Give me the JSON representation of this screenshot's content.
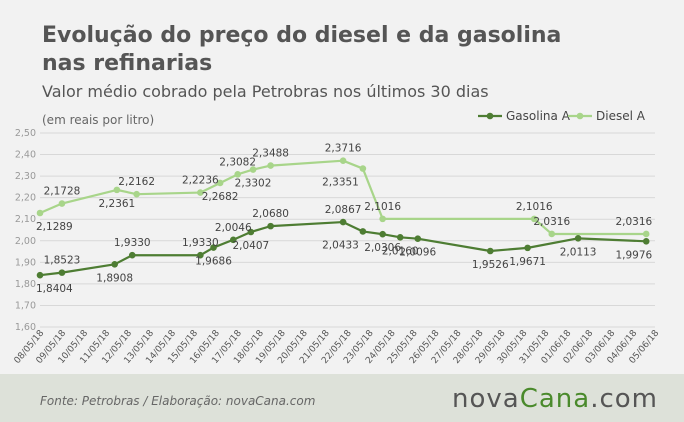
{
  "title": "Evolução do preço do diesel e da gasolina nas refinarias",
  "subtitle": "Valor médio cobrado pela Petrobras nos últimos 30 dias",
  "units": "(em reais por litro)",
  "footer": {
    "source": "Fonte:  Petrobras  / Elaboração:  novaCana.com",
    "brand_part1": "nova",
    "brand_part2": "Cana",
    "brand_part3": ".com"
  },
  "colors": {
    "gasolina": "#4e7d33",
    "diesel": "#a8d58a",
    "grid": "#d8d8d8"
  },
  "chart_data": {
    "type": "line",
    "categories": [
      "08/05/18",
      "09/05/18",
      "10/05/18",
      "11/05/18",
      "12/05/18",
      "13/05/18",
      "14/05/18",
      "15/05/18",
      "16/05/18",
      "17/05/18",
      "18/05/18",
      "19/05/18",
      "20/05/18",
      "21/05/18",
      "22/05/18",
      "23/05/18",
      "24/05/18",
      "25/05/18",
      "26/05/18",
      "27/05/18",
      "28/05/18",
      "29/05/18",
      "30/05/18",
      "31/05/18",
      "01/06/18",
      "02/06/18",
      "03/06/18",
      "04/06/18",
      "05/06/18"
    ],
    "yticks": [
      "1,60",
      "1,70",
      "1,80",
      "1,90",
      "2,00",
      "2,10",
      "2,20",
      "2,30",
      "2,40",
      "2,50"
    ],
    "ylim": [
      1.6,
      2.5
    ],
    "legend_position": "top-right",
    "series": [
      {
        "name": "Gasolina A",
        "color": "#4e7d33",
        "points": [
          {
            "x": 0,
            "y": 1.8404,
            "label": "1,8404",
            "lp": "below"
          },
          {
            "x": 1,
            "y": 1.8523,
            "label": "1,8523",
            "lp": "above"
          },
          {
            "x": 3.4,
            "y": 1.8908,
            "label": "1,8908",
            "lp": "below"
          },
          {
            "x": 4.2,
            "y": 1.933,
            "label": "1,9330",
            "lp": "above"
          },
          {
            "x": 7.3,
            "y": 1.933,
            "label": "1,9330",
            "lp": "above"
          },
          {
            "x": 7.9,
            "y": 1.9686,
            "label": "1,9686",
            "lp": "below"
          },
          {
            "x": 8.8,
            "y": 2.0046,
            "label": "2,0046",
            "lp": "above"
          },
          {
            "x": 9.6,
            "y": 2.0407,
            "label": "2,0407",
            "lp": "below"
          },
          {
            "x": 10.5,
            "y": 2.068,
            "label": "2,0680",
            "lp": "above"
          },
          {
            "x": 13.8,
            "y": 2.0867,
            "label": "2,0867",
            "lp": "above"
          },
          {
            "x": 14.7,
            "y": 2.0433,
            "label": "2,0433",
            "lp": "belowleft"
          },
          {
            "x": 15.6,
            "y": 2.0306,
            "label": "2,0306",
            "lp": "below"
          },
          {
            "x": 16.4,
            "y": 2.016,
            "label": "2,0160",
            "lp": "below"
          },
          {
            "x": 17.2,
            "y": 2.0096,
            "label": "2,0096",
            "lp": "below"
          },
          {
            "x": 20.5,
            "y": 1.9526,
            "label": "1,9526",
            "lp": "below"
          },
          {
            "x": 22.2,
            "y": 1.9671,
            "label": "1,9671",
            "lp": "below"
          },
          {
            "x": 24.5,
            "y": 2.0113,
            "label": "2,0113",
            "lp": "below"
          },
          {
            "x": 27.6,
            "y": 1.9976,
            "label": "1,9976",
            "lp": "below"
          }
        ]
      },
      {
        "name": "Diesel A",
        "color": "#a8d58a",
        "points": [
          {
            "x": 0,
            "y": 2.1289,
            "label": "2,1289",
            "lp": "below"
          },
          {
            "x": 1,
            "y": 2.1728,
            "label": "2,1728",
            "lp": "above"
          },
          {
            "x": 3.5,
            "y": 2.2361,
            "label": "2,2361",
            "lp": "below"
          },
          {
            "x": 4.4,
            "y": 2.2162,
            "label": "2,2162",
            "lp": "above"
          },
          {
            "x": 7.3,
            "y": 2.2236,
            "label": "2,2236",
            "lp": "above"
          },
          {
            "x": 8.2,
            "y": 2.2682,
            "label": "2,2682",
            "lp": "below"
          },
          {
            "x": 9,
            "y": 2.3082,
            "label": "2,3082",
            "lp": "above"
          },
          {
            "x": 9.7,
            "y": 2.3302,
            "label": "2,3302",
            "lp": "below"
          },
          {
            "x": 10.5,
            "y": 2.3488,
            "label": "2,3488",
            "lp": "above"
          },
          {
            "x": 13.8,
            "y": 2.3716,
            "label": "2,3716",
            "lp": "above"
          },
          {
            "x": 14.7,
            "y": 2.3351,
            "label": "2,3351",
            "lp": "belowleft"
          },
          {
            "x": 15.6,
            "y": 2.1016,
            "label": "2,1016",
            "lp": "above"
          },
          {
            "x": 22.5,
            "y": 2.1016,
            "label": "2,1016",
            "lp": "above"
          },
          {
            "x": 23.3,
            "y": 2.0316,
            "label": "2,0316",
            "lp": "above"
          },
          {
            "x": 27.6,
            "y": 2.0316,
            "label": "2,0316",
            "lp": "above"
          }
        ]
      }
    ]
  }
}
